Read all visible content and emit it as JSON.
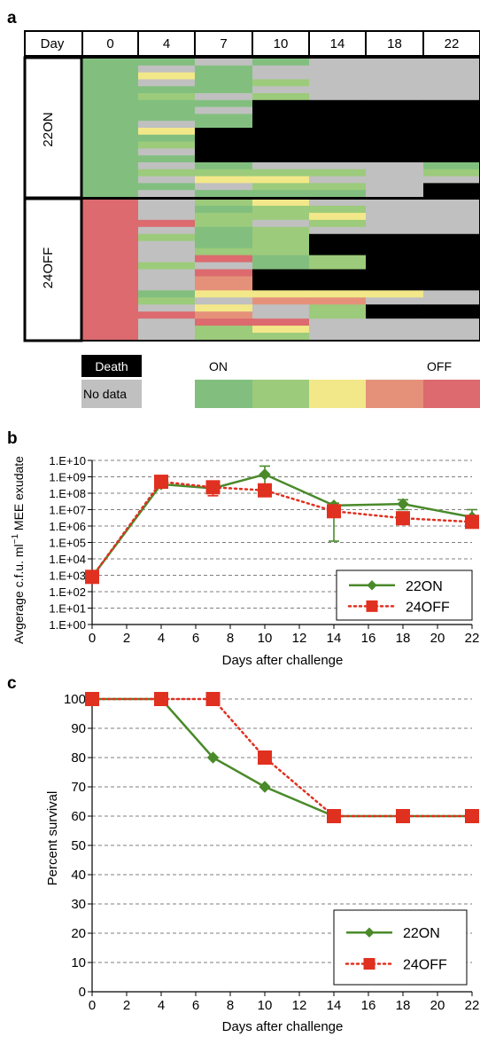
{
  "panels": {
    "a": "a",
    "b": "b",
    "c": "c"
  },
  "heatmap": {
    "header_label": "Day",
    "days": [
      "0",
      "4",
      "7",
      "10",
      "14",
      "18",
      "22"
    ],
    "groups": [
      "22ON",
      "24OFF"
    ],
    "legend": {
      "death": "Death",
      "no_data": "No data",
      "on": "ON",
      "off": "OFF"
    },
    "colors": {
      "death": "#000000",
      "no_data": "#c0c0c0",
      "scale": [
        "#82bf7f",
        "#9ccb7b",
        "#f2e889",
        "#e5917a",
        "#dc6a6e"
      ]
    }
  },
  "chart_data": [
    {
      "type": "line",
      "ylabel_main": "Avgerage c.f.u. ml",
      "ylabel_sup": "−1",
      "ylabel_tail": " MEE exudate",
      "xlabel": "Days after challenge",
      "yscale": "log",
      "xlim": [
        0,
        22
      ],
      "ylim": [
        1,
        10000000000
      ],
      "x_ticks": [
        "0",
        "2",
        "4",
        "6",
        "8",
        "10",
        "12",
        "14",
        "16",
        "18",
        "20",
        "22"
      ],
      "y_ticks": [
        "1.E+00",
        "1.E+01",
        "1.E+02",
        "1.E+03",
        "1.E+04",
        "1.E+05",
        "1.E+06",
        "1.E+07",
        "1.E+08",
        "1.E+09",
        "1.E+10"
      ],
      "grid": true,
      "legend_position": "bottom-right",
      "series": [
        {
          "name": "22ON",
          "color": "#4a8a2a",
          "marker": "diamond",
          "dash": "solid",
          "x": [
            0,
            4,
            7,
            10,
            14,
            18,
            22
          ],
          "y": [
            800,
            350000000,
            200000000,
            1400000000,
            18000000,
            22000000,
            3500000
          ],
          "err_low": [
            null,
            null,
            null,
            300000000,
            120000,
            10000000,
            1200000
          ],
          "err_high": [
            null,
            null,
            null,
            4500000000,
            25000000,
            40000000,
            10000000
          ]
        },
        {
          "name": "24OFF",
          "color": "#e03020",
          "marker": "square",
          "dash": "dotted",
          "x": [
            0,
            4,
            7,
            10,
            14,
            18,
            22
          ],
          "y": [
            800,
            500000000,
            230000000,
            150000000,
            8000000,
            3000000,
            1800000
          ],
          "err_low": [
            null,
            null,
            70000000,
            null,
            null,
            null,
            null
          ],
          "err_high": [
            null,
            null,
            400000000,
            null,
            null,
            null,
            null
          ]
        }
      ]
    },
    {
      "type": "line",
      "ylabel": "Percent survival",
      "xlabel": "Days after challenge",
      "xlim": [
        0,
        22
      ],
      "ylim": [
        0,
        100
      ],
      "x_ticks": [
        "0",
        "2",
        "4",
        "6",
        "8",
        "10",
        "12",
        "14",
        "16",
        "18",
        "20",
        "22"
      ],
      "y_ticks": [
        "0",
        "10",
        "20",
        "30",
        "40",
        "50",
        "60",
        "70",
        "80",
        "90",
        "100"
      ],
      "grid": true,
      "legend_position": "bottom-right",
      "series": [
        {
          "name": "22ON",
          "color": "#4a8a2a",
          "marker": "diamond",
          "dash": "solid",
          "x": [
            0,
            4,
            7,
            10,
            14,
            18,
            22
          ],
          "y": [
            100,
            100,
            80,
            70,
            60,
            60,
            60
          ]
        },
        {
          "name": "24OFF",
          "color": "#e03020",
          "marker": "square",
          "dash": "dotted",
          "x": [
            0,
            4,
            7,
            10,
            14,
            18,
            22
          ],
          "y": [
            100,
            100,
            100,
            80,
            60,
            60,
            60
          ]
        }
      ]
    }
  ]
}
